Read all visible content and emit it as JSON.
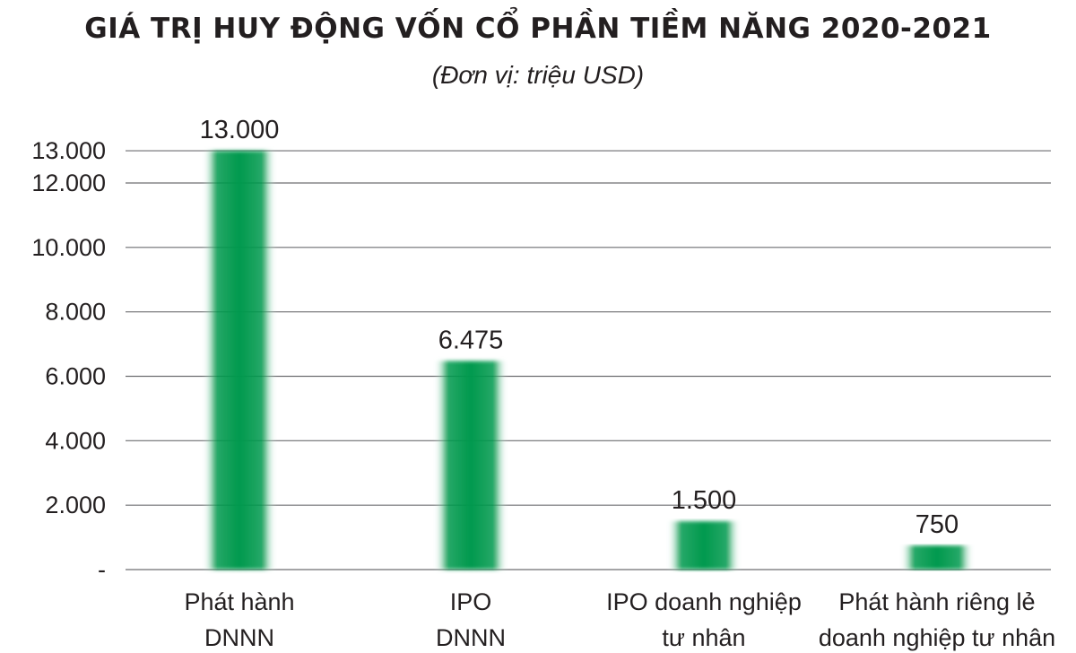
{
  "chart_data": {
    "type": "bar",
    "title": "GIÁ TRỊ HUY ĐỘNG VỐN CỔ PHẦN TIỀM NĂNG 2020-2021",
    "subtitle": "(Đơn vị: triệu USD)",
    "categories": [
      [
        "Phát hành",
        "DNNN"
      ],
      [
        "IPO",
        "DNNN"
      ],
      [
        "IPO doanh nghiệp",
        "tư nhân"
      ],
      [
        "Phát hành riêng lẻ",
        "doanh nghiệp tư nhân"
      ]
    ],
    "values": [
      13000,
      6475,
      1500,
      750
    ],
    "data_labels": [
      "13.000",
      "6.475",
      "1.500",
      "750"
    ],
    "y_ticks": [
      {
        "value": 0,
        "label": "-"
      },
      {
        "value": 2000,
        "label": "2.000"
      },
      {
        "value": 4000,
        "label": "4.000"
      },
      {
        "value": 6000,
        "label": "6.000"
      },
      {
        "value": 8000,
        "label": "8.000"
      },
      {
        "value": 10000,
        "label": "10.000"
      },
      {
        "value": 12000,
        "label": "12.000"
      },
      {
        "value": 13000,
        "label": "13.000"
      }
    ],
    "ylim": [
      0,
      14000
    ],
    "grid": true,
    "bar_color": "#00994d"
  }
}
